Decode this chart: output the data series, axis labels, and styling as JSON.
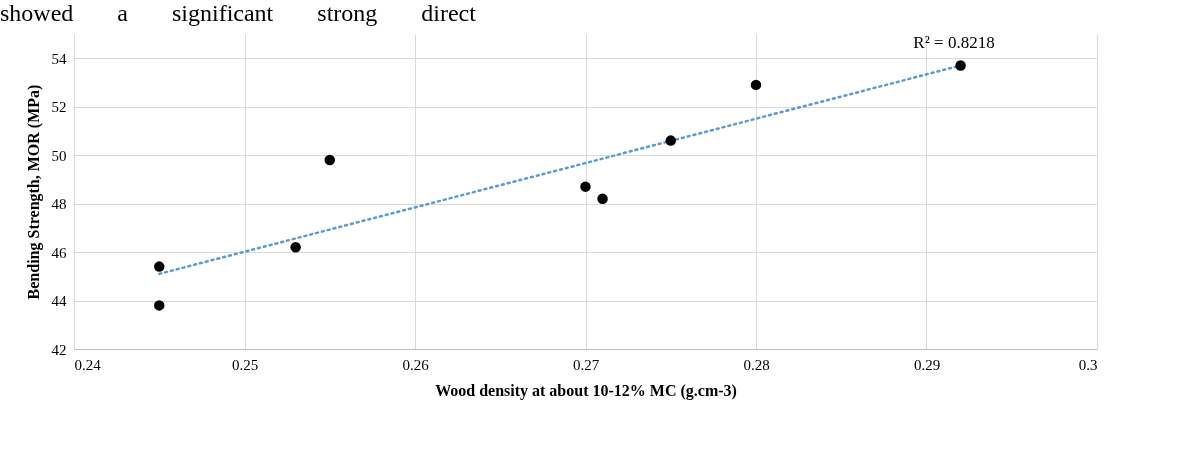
{
  "chart_data": {
    "type": "scatter",
    "xlabel": "Wood density at about 10-12% MC (g.cm-3)",
    "ylabel": "Bending Strength, MOR (MPa)",
    "series": [
      {
        "color": "#000000",
        "marker": "circle",
        "x": [
          0.245,
          0.245,
          0.253,
          0.255,
          0.27,
          0.271,
          0.275,
          0.28,
          0.292
        ],
        "values": [
          45.4,
          43.8,
          46.2,
          49.8,
          48.7,
          48.2,
          50.6,
          52.9,
          53.7
        ]
      },
      {
        "type": "line",
        "color": "#5b9bd5",
        "line_style": "dotted",
        "x": [
          0.245,
          0.292
        ],
        "values": [
          45.1,
          53.7
        ]
      }
    ],
    "xlim": [
      0.24,
      0.3
    ],
    "xticks": [
      0.24,
      0.25,
      0.26,
      0.27,
      0.28,
      0.29,
      0.3
    ],
    "ylim": [
      42,
      55
    ],
    "yticks": [
      42,
      44,
      46,
      48,
      50,
      52,
      54
    ],
    "grid": true,
    "annotations": [
      "showed a significant strong direct",
      "R² = 0.8218"
    ]
  }
}
